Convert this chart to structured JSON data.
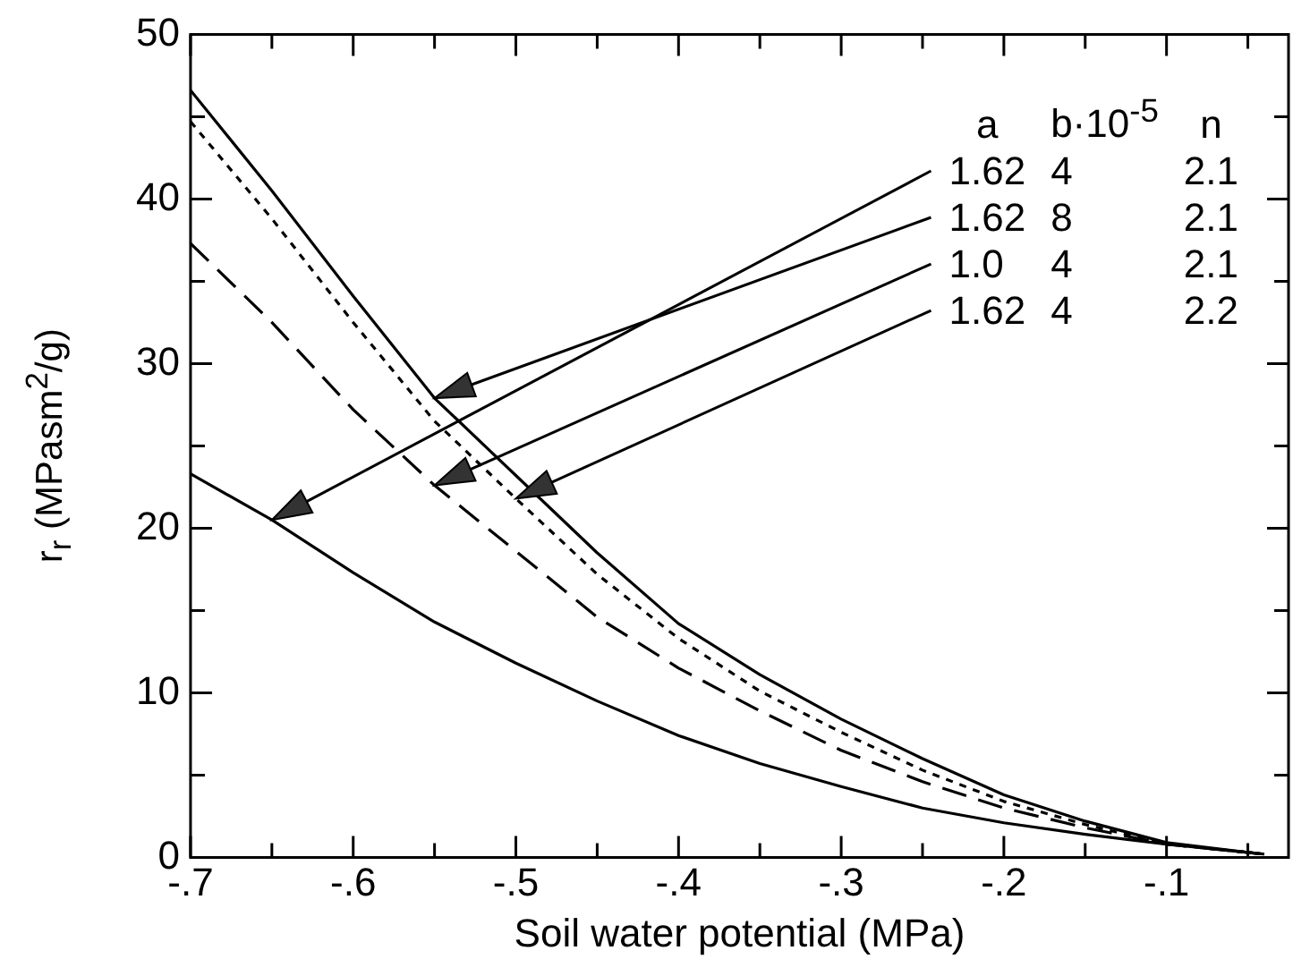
{
  "chart_data": {
    "type": "line",
    "xlabel": "Soil water potential (MPa)",
    "ylabel": "r$_{r}$ (MPasm$^{2}$/g)",
    "legend_title": "a b·10$^{-5}$ n",
    "grid": false,
    "marker": "none",
    "xlim": [
      -0.7,
      -0.025
    ],
    "xticks": [
      {
        "value": -0.7,
        "label": "-.7"
      },
      {
        "value": -0.65,
        "label": null
      },
      {
        "value": -0.6,
        "label": "-.6"
      },
      {
        "value": -0.55,
        "label": null
      },
      {
        "value": -0.5,
        "label": "-.5"
      },
      {
        "value": -0.45,
        "label": null
      },
      {
        "value": -0.4,
        "label": "-.4"
      },
      {
        "value": -0.35,
        "label": null
      },
      {
        "value": -0.3,
        "label": "-.3"
      },
      {
        "value": -0.25,
        "label": null
      },
      {
        "value": -0.2,
        "label": "-.2"
      },
      {
        "value": -0.15,
        "label": null
      },
      {
        "value": -0.1,
        "label": "-.1"
      },
      {
        "value": -0.05,
        "label": null
      }
    ],
    "ylim": [
      0,
      50
    ],
    "yticks": [
      0,
      {
        "value": 5,
        "label": null
      },
      10,
      {
        "value": 15,
        "label": null
      },
      20,
      {
        "value": 25,
        "label": null
      },
      30,
      {
        "value": 35,
        "label": null
      },
      40,
      {
        "value": 45,
        "label": null
      },
      50
    ],
    "x": [
      -0.7,
      -0.65,
      -0.6,
      -0.55,
      -0.5,
      -0.45,
      -0.4,
      -0.35,
      -0.3,
      -0.25,
      -0.2,
      -0.15,
      -0.1,
      -0.05,
      -0.04
    ],
    "series": [
      {
        "name": "1.62 4 2.1",
        "color": "#000000",
        "line_style": "solid",
        "values": [
          23.3,
          20.5,
          17.3,
          14.3,
          11.8,
          9.5,
          7.4,
          5.7,
          4.3,
          3.0,
          2.1,
          1.4,
          0.8,
          0.3,
          0.2
        ]
      },
      {
        "name": "1.62 8 2.1",
        "color": "#000000",
        "line_style": "solid",
        "values": [
          46.6,
          40.5,
          34.1,
          27.9,
          23.2,
          18.5,
          14.2,
          11.1,
          8.4,
          6.0,
          3.8,
          2.2,
          0.9,
          0.3,
          0.2
        ]
      },
      {
        "name": "1.0 4 2.1",
        "color": "#000000",
        "line_style": "dashed",
        "values": [
          37.3,
          32.5,
          27.2,
          22.6,
          18.6,
          14.6,
          11.5,
          8.9,
          6.5,
          4.6,
          3.0,
          1.8,
          0.8,
          0.3,
          0.2
        ]
      },
      {
        "name": "1.62 4 2.2",
        "color": "#000000",
        "line_style": "dotted",
        "values": [
          44.7,
          38.8,
          32.5,
          26.5,
          21.8,
          17.2,
          13.3,
          10.1,
          7.6,
          5.3,
          3.4,
          2.0,
          0.8,
          0.3,
          0.2
        ]
      }
    ]
  }
}
